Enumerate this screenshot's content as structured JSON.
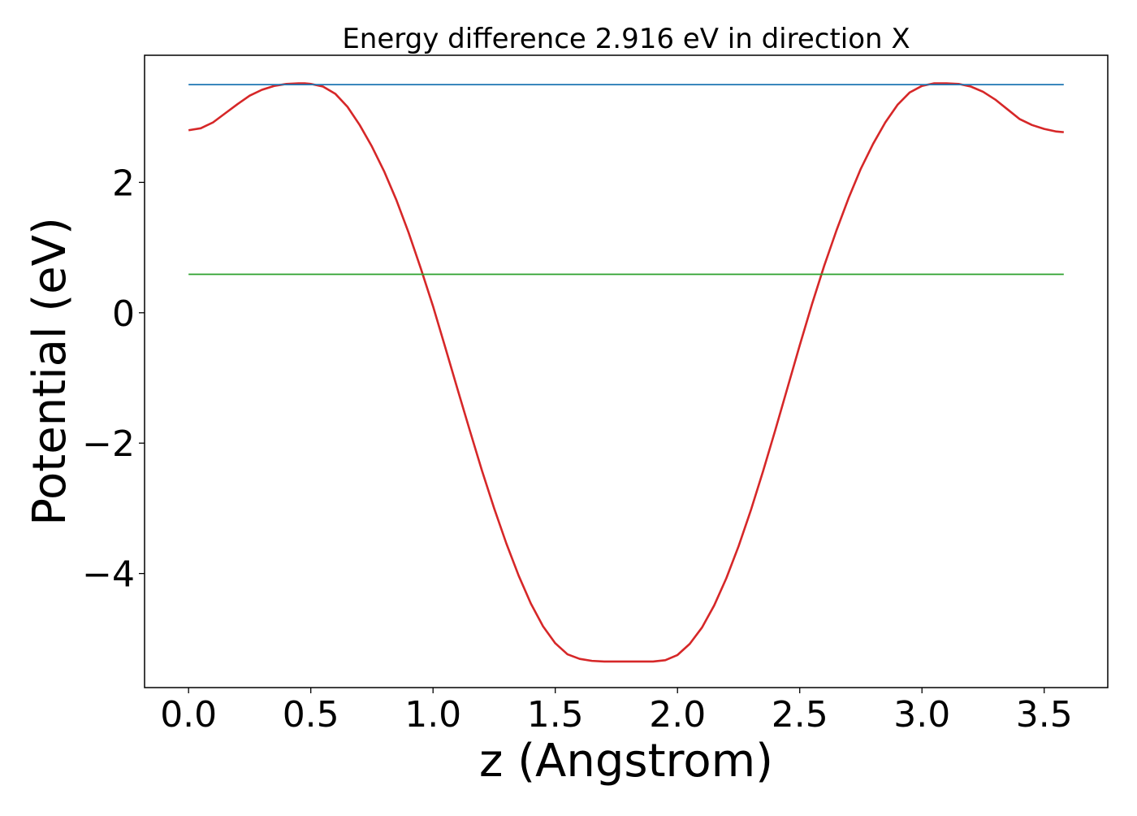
{
  "chart_data": {
    "type": "line",
    "title": "Energy difference 2.916 eV in direction X",
    "xlabel": "z (Angstrom)",
    "ylabel": "Potential (eV)",
    "xlim": [
      -0.18,
      3.76
    ],
    "ylim": [
      -5.75,
      3.95
    ],
    "xticks": [
      0.0,
      0.5,
      1.0,
      1.5,
      2.0,
      2.5,
      3.0,
      3.5
    ],
    "xtick_labels": [
      "0.0",
      "0.5",
      "1.0",
      "1.5",
      "2.0",
      "2.5",
      "3.0",
      "3.5"
    ],
    "yticks": [
      2,
      0,
      -2,
      -4
    ],
    "ytick_labels": [
      "2",
      "0",
      "−2",
      "−4"
    ],
    "grid": false,
    "series": [
      {
        "color": "#d62728",
        "x": [
          0.0,
          0.05,
          0.1,
          0.15,
          0.2,
          0.25,
          0.3,
          0.35,
          0.4,
          0.45,
          0.475,
          0.5,
          0.55,
          0.6,
          0.65,
          0.7,
          0.75,
          0.8,
          0.85,
          0.9,
          0.95,
          1.0,
          1.05,
          1.1,
          1.15,
          1.2,
          1.25,
          1.3,
          1.35,
          1.4,
          1.45,
          1.5,
          1.55,
          1.6,
          1.65,
          1.7,
          1.75,
          1.8,
          1.85,
          1.9,
          1.95,
          2.0,
          2.05,
          2.1,
          2.15,
          2.2,
          2.25,
          2.3,
          2.35,
          2.4,
          2.45,
          2.5,
          2.55,
          2.6,
          2.65,
          2.7,
          2.75,
          2.8,
          2.85,
          2.9,
          2.95,
          3.0,
          3.05,
          3.1,
          3.15,
          3.2,
          3.25,
          3.3,
          3.35,
          3.4,
          3.45,
          3.5,
          3.55,
          3.58
        ],
        "y": [
          2.8,
          2.83,
          2.92,
          3.06,
          3.2,
          3.33,
          3.42,
          3.48,
          3.51,
          3.52,
          3.52,
          3.51,
          3.47,
          3.36,
          3.16,
          2.88,
          2.55,
          2.17,
          1.73,
          1.23,
          0.68,
          0.1,
          -0.53,
          -1.17,
          -1.8,
          -2.42,
          -3.0,
          -3.54,
          -4.03,
          -4.46,
          -4.81,
          -5.07,
          -5.24,
          -5.31,
          -5.34,
          -5.35,
          -5.35,
          -5.35,
          -5.35,
          -5.35,
          -5.33,
          -5.25,
          -5.08,
          -4.83,
          -4.49,
          -4.07,
          -3.58,
          -3.03,
          -2.43,
          -1.8,
          -1.15,
          -0.5,
          0.13,
          0.72,
          1.26,
          1.76,
          2.21,
          2.59,
          2.92,
          3.19,
          3.38,
          3.48,
          3.52,
          3.52,
          3.51,
          3.47,
          3.39,
          3.27,
          3.12,
          2.97,
          2.88,
          2.82,
          2.78,
          2.77
        ]
      },
      {
        "color": "#1f77b4",
        "x": [
          0.0,
          3.58
        ],
        "y": [
          3.5,
          3.5
        ]
      },
      {
        "color": "#2ca02c",
        "x": [
          0.0,
          3.58
        ],
        "y": [
          0.59,
          0.59
        ]
      }
    ]
  }
}
